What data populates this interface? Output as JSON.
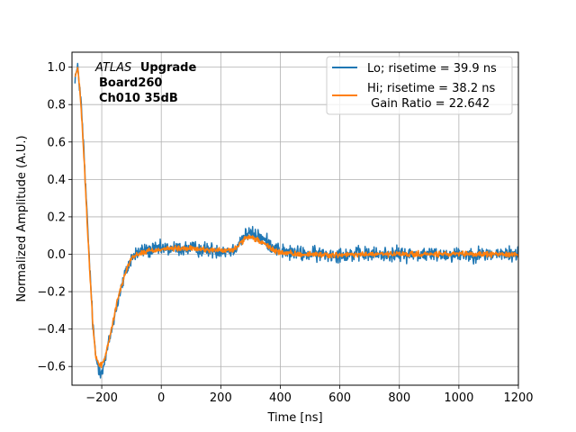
{
  "chart_data": {
    "type": "line",
    "xlabel": "Time [ns]",
    "ylabel": "Normalized Amplitude (A.U.)",
    "xlim": [
      -300,
      1200
    ],
    "ylim": [
      -0.7,
      1.08
    ],
    "xticks": [
      -200,
      0,
      200,
      400,
      600,
      800,
      1000,
      1200
    ],
    "yticks": [
      -0.6,
      -0.4,
      -0.2,
      0.0,
      0.2,
      0.4,
      0.6,
      0.8,
      1.0
    ],
    "xtick_labels": [
      "−200",
      "0",
      "200",
      "400",
      "600",
      "800",
      "1000",
      "1200"
    ],
    "ytick_labels": [
      "−0.6",
      "−0.4",
      "−0.2",
      "0.0",
      "0.2",
      "0.4",
      "0.6",
      "0.8",
      "1.0"
    ],
    "grid": true,
    "legend_position": "top-right",
    "annotation": {
      "experiment_italic": "ATLAS",
      "experiment_bold": "Upgrade",
      "line2": "Board260",
      "line3": "Ch010 35dB"
    },
    "legend": {
      "gain_ratio_text": " Gain Ratio = 22.642"
    },
    "series": [
      {
        "name": "Lo; risetime = 39.9 ns",
        "color": "#1f77b4",
        "noise": 0.02,
        "x": [
          -290,
          -280,
          -270,
          -260,
          -250,
          -240,
          -230,
          -220,
          -210,
          -200,
          -190,
          -180,
          -170,
          -160,
          -150,
          -140,
          -120,
          -100,
          -80,
          -60,
          -40,
          -20,
          0,
          50,
          100,
          150,
          200,
          240,
          260,
          280,
          300,
          320,
          340,
          360,
          380,
          400,
          420,
          450,
          500,
          600,
          700,
          800,
          900,
          1000,
          1100,
          1200
        ],
        "y": [
          0.95,
          0.99,
          0.82,
          0.55,
          0.22,
          -0.08,
          -0.38,
          -0.55,
          -0.61,
          -0.62,
          -0.58,
          -0.5,
          -0.43,
          -0.35,
          -0.28,
          -0.21,
          -0.1,
          -0.02,
          0.01,
          0.02,
          0.02,
          0.025,
          0.03,
          0.03,
          0.03,
          0.025,
          0.02,
          0.02,
          0.06,
          0.1,
          0.11,
          0.1,
          0.08,
          0.06,
          0.04,
          0.02,
          0.01,
          0.005,
          0.0,
          0.0,
          0.0,
          0.0,
          0.0,
          0.0,
          0.0,
          0.0
        ]
      },
      {
        "name": "Hi; risetime = 38.2 ns",
        "color": "#ff7f0e",
        "noise": 0.007,
        "x": [
          -290,
          -280,
          -270,
          -260,
          -250,
          -240,
          -230,
          -220,
          -210,
          -200,
          -190,
          -180,
          -170,
          -160,
          -150,
          -140,
          -120,
          -100,
          -80,
          -60,
          -40,
          -20,
          0,
          50,
          100,
          150,
          200,
          240,
          260,
          280,
          300,
          320,
          340,
          360,
          380,
          400,
          420,
          450,
          500,
          600,
          700,
          800,
          900,
          1000,
          1100,
          1200
        ],
        "y": [
          0.95,
          0.99,
          0.8,
          0.53,
          0.2,
          -0.1,
          -0.38,
          -0.54,
          -0.59,
          -0.59,
          -0.56,
          -0.49,
          -0.42,
          -0.34,
          -0.27,
          -0.2,
          -0.09,
          -0.02,
          0.0,
          0.01,
          0.02,
          0.02,
          0.03,
          0.03,
          0.03,
          0.025,
          0.02,
          0.02,
          0.05,
          0.08,
          0.09,
          0.08,
          0.06,
          0.04,
          0.02,
          0.01,
          0.005,
          0.0,
          0.0,
          -0.005,
          0.0,
          0.0,
          0.0,
          0.0,
          0.0,
          0.0
        ]
      }
    ]
  }
}
